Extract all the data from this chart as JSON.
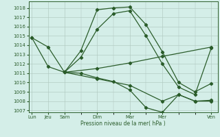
{
  "bg_color": "#d4eee8",
  "line_color": "#2a5c2a",
  "grid_color": "#b0c8c0",
  "xlabel": "Pression niveau de la mer( hPa )",
  "ylim": [
    1006.8,
    1018.7
  ],
  "yticks": [
    1007,
    1008,
    1009,
    1010,
    1011,
    1012,
    1013,
    1014,
    1015,
    1016,
    1017,
    1018
  ],
  "x_major_pos": [
    0,
    1,
    2,
    4,
    6,
    8,
    11
  ],
  "x_major_labels": [
    "Lun",
    "Jeu",
    "Sam",
    "Dim",
    "Mar",
    "Mer",
    "Ven"
  ],
  "xlim": [
    -0.2,
    11.4
  ],
  "line1_x": [
    0,
    1,
    2,
    3,
    4,
    5,
    6,
    7,
    8,
    9,
    10,
    11
  ],
  "line1_y": [
    1014.8,
    1013.8,
    1011.1,
    1013.4,
    1017.8,
    1018.0,
    1018.1,
    1016.2,
    1013.3,
    1010.0,
    1009.0,
    1009.9
  ],
  "line2_x": [
    0,
    1,
    2,
    3,
    4,
    5,
    6,
    7,
    8,
    9,
    10,
    11
  ],
  "line2_y": [
    1014.8,
    1011.7,
    1011.1,
    1012.7,
    1015.7,
    1017.4,
    1017.7,
    1015.0,
    1012.0,
    1009.5,
    1008.7,
    1013.7
  ],
  "line3_x": [
    2,
    4,
    6,
    8,
    11
  ],
  "line3_y": [
    1011.1,
    1011.5,
    1012.1,
    1012.8,
    1013.8
  ],
  "line4_x": [
    2,
    4,
    6,
    8,
    9,
    10,
    11
  ],
  "line4_y": [
    1011.1,
    1010.4,
    1009.7,
    1008.0,
    1008.7,
    1008.0,
    1008.1
  ],
  "line5_x": [
    2,
    3,
    4,
    5,
    6,
    7,
    8,
    9,
    10,
    11
  ],
  "line5_y": [
    1011.1,
    1011.0,
    1010.5,
    1010.1,
    1009.2,
    1007.3,
    1006.8,
    1008.7,
    1008.0,
    1008.0
  ],
  "marker_size": 2.2,
  "line_width": 0.9
}
